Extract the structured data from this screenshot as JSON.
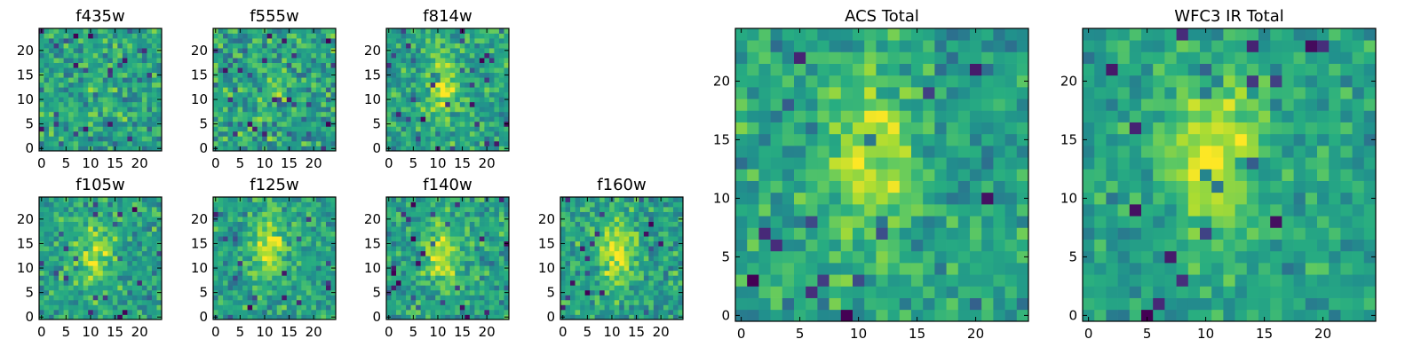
{
  "colors": {
    "colormap": "viridis",
    "axis": "#000000",
    "background": "#ffffff"
  },
  "chart_data": [
    {
      "type": "heatmap",
      "title": "f435w",
      "xlim": [
        0,
        24
      ],
      "ylim": [
        0,
        24
      ],
      "xticks": [
        0,
        5,
        10,
        15,
        20
      ],
      "yticks": [
        0,
        5,
        10,
        15,
        20
      ],
      "tick_labels": {
        "x": [
          "0",
          "5",
          "10",
          "15",
          "20"
        ],
        "y": [
          "0",
          "5",
          "10",
          "15",
          "20"
        ]
      },
      "grid_size": 25,
      "source_offset": [
        12,
        13
      ],
      "source_strength": 0.05,
      "noise": 0.28,
      "seed": 11
    },
    {
      "type": "heatmap",
      "title": "f555w",
      "xlim": [
        0,
        24
      ],
      "ylim": [
        0,
        24
      ],
      "xticks": [
        0,
        5,
        10,
        15,
        20
      ],
      "yticks": [
        0,
        5,
        10,
        15,
        20
      ],
      "tick_labels": {
        "x": [
          "0",
          "5",
          "10",
          "15",
          "20"
        ],
        "y": [
          "0",
          "5",
          "10",
          "15",
          "20"
        ]
      },
      "grid_size": 25,
      "source_offset": [
        12,
        13
      ],
      "source_strength": 0.12,
      "noise": 0.3,
      "seed": 23
    },
    {
      "type": "heatmap",
      "title": "f814w",
      "xlim": [
        0,
        24
      ],
      "ylim": [
        0,
        24
      ],
      "xticks": [
        0,
        5,
        10,
        15,
        20
      ],
      "yticks": [
        0,
        5,
        10,
        15,
        20
      ],
      "tick_labels": {
        "x": [
          "0",
          "5",
          "10",
          "15",
          "20"
        ],
        "y": [
          "0",
          "5",
          "10",
          "15",
          "20"
        ]
      },
      "grid_size": 25,
      "source_offset": [
        11,
        13
      ],
      "source_strength": 0.32,
      "noise": 0.26,
      "seed": 37
    },
    {
      "type": "heatmap",
      "title": "f105w",
      "xlim": [
        0,
        24
      ],
      "ylim": [
        0,
        24
      ],
      "xticks": [
        0,
        5,
        10,
        15,
        20
      ],
      "yticks": [
        0,
        5,
        10,
        15,
        20
      ],
      "tick_labels": {
        "x": [
          "0",
          "5",
          "10",
          "15",
          "20"
        ],
        "y": [
          "0",
          "5",
          "10",
          "15",
          "20"
        ]
      },
      "grid_size": 25,
      "source_offset": [
        11,
        13
      ],
      "source_strength": 0.3,
      "noise": 0.25,
      "seed": 41
    },
    {
      "type": "heatmap",
      "title": "f125w",
      "xlim": [
        0,
        24
      ],
      "ylim": [
        0,
        24
      ],
      "xticks": [
        0,
        5,
        10,
        15,
        20
      ],
      "yticks": [
        0,
        5,
        10,
        15,
        20
      ],
      "tick_labels": {
        "x": [
          "0",
          "5",
          "10",
          "15",
          "20"
        ],
        "y": [
          "0",
          "5",
          "10",
          "15",
          "20"
        ]
      },
      "grid_size": 25,
      "source_offset": [
        11,
        14
      ],
      "source_strength": 0.35,
      "noise": 0.25,
      "seed": 53
    },
    {
      "type": "heatmap",
      "title": "f140w",
      "xlim": [
        0,
        24
      ],
      "ylim": [
        0,
        24
      ],
      "xticks": [
        0,
        5,
        10,
        15,
        20
      ],
      "yticks": [
        0,
        5,
        10,
        15,
        20
      ],
      "tick_labels": {
        "x": [
          "0",
          "5",
          "10",
          "15",
          "20"
        ],
        "y": [
          "0",
          "5",
          "10",
          "15",
          "20"
        ]
      },
      "grid_size": 25,
      "source_offset": [
        11,
        13
      ],
      "source_strength": 0.38,
      "noise": 0.24,
      "seed": 67
    },
    {
      "type": "heatmap",
      "title": "f160w",
      "xlim": [
        0,
        24
      ],
      "ylim": [
        0,
        24
      ],
      "xticks": [
        0,
        5,
        10,
        15,
        20
      ],
      "yticks": [
        0,
        5,
        10,
        15,
        20
      ],
      "tick_labels": {
        "x": [
          "0",
          "5",
          "10",
          "15",
          "20"
        ],
        "y": [
          "0",
          "5",
          "10",
          "15",
          "20"
        ]
      },
      "grid_size": 25,
      "source_offset": [
        11,
        13
      ],
      "source_strength": 0.36,
      "noise": 0.25,
      "seed": 79
    },
    {
      "type": "heatmap",
      "title": "ACS Total",
      "xlim": [
        0,
        24
      ],
      "ylim": [
        0,
        24
      ],
      "xticks": [
        0,
        5,
        10,
        15,
        20
      ],
      "yticks": [
        0,
        5,
        10,
        15,
        20
      ],
      "tick_labels": {
        "x": [
          "0",
          "5",
          "10",
          "15",
          "20"
        ],
        "y": [
          "0",
          "5",
          "10",
          "15",
          "20"
        ]
      },
      "grid_size": 25,
      "source_offset": [
        11,
        13
      ],
      "source_strength": 0.34,
      "noise": 0.24,
      "seed": 97
    },
    {
      "type": "heatmap",
      "title": "WFC3 IR Total",
      "xlim": [
        0,
        24
      ],
      "ylim": [
        0,
        24
      ],
      "xticks": [
        0,
        5,
        10,
        15,
        20
      ],
      "yticks": [
        0,
        5,
        10,
        15,
        20
      ],
      "tick_labels": {
        "x": [
          "0",
          "5",
          "10",
          "15",
          "20"
        ],
        "y": [
          "0",
          "5",
          "10",
          "15",
          "20"
        ]
      },
      "grid_size": 25,
      "source_offset": [
        11,
        14
      ],
      "source_strength": 0.42,
      "noise": 0.2,
      "seed": 113
    }
  ]
}
